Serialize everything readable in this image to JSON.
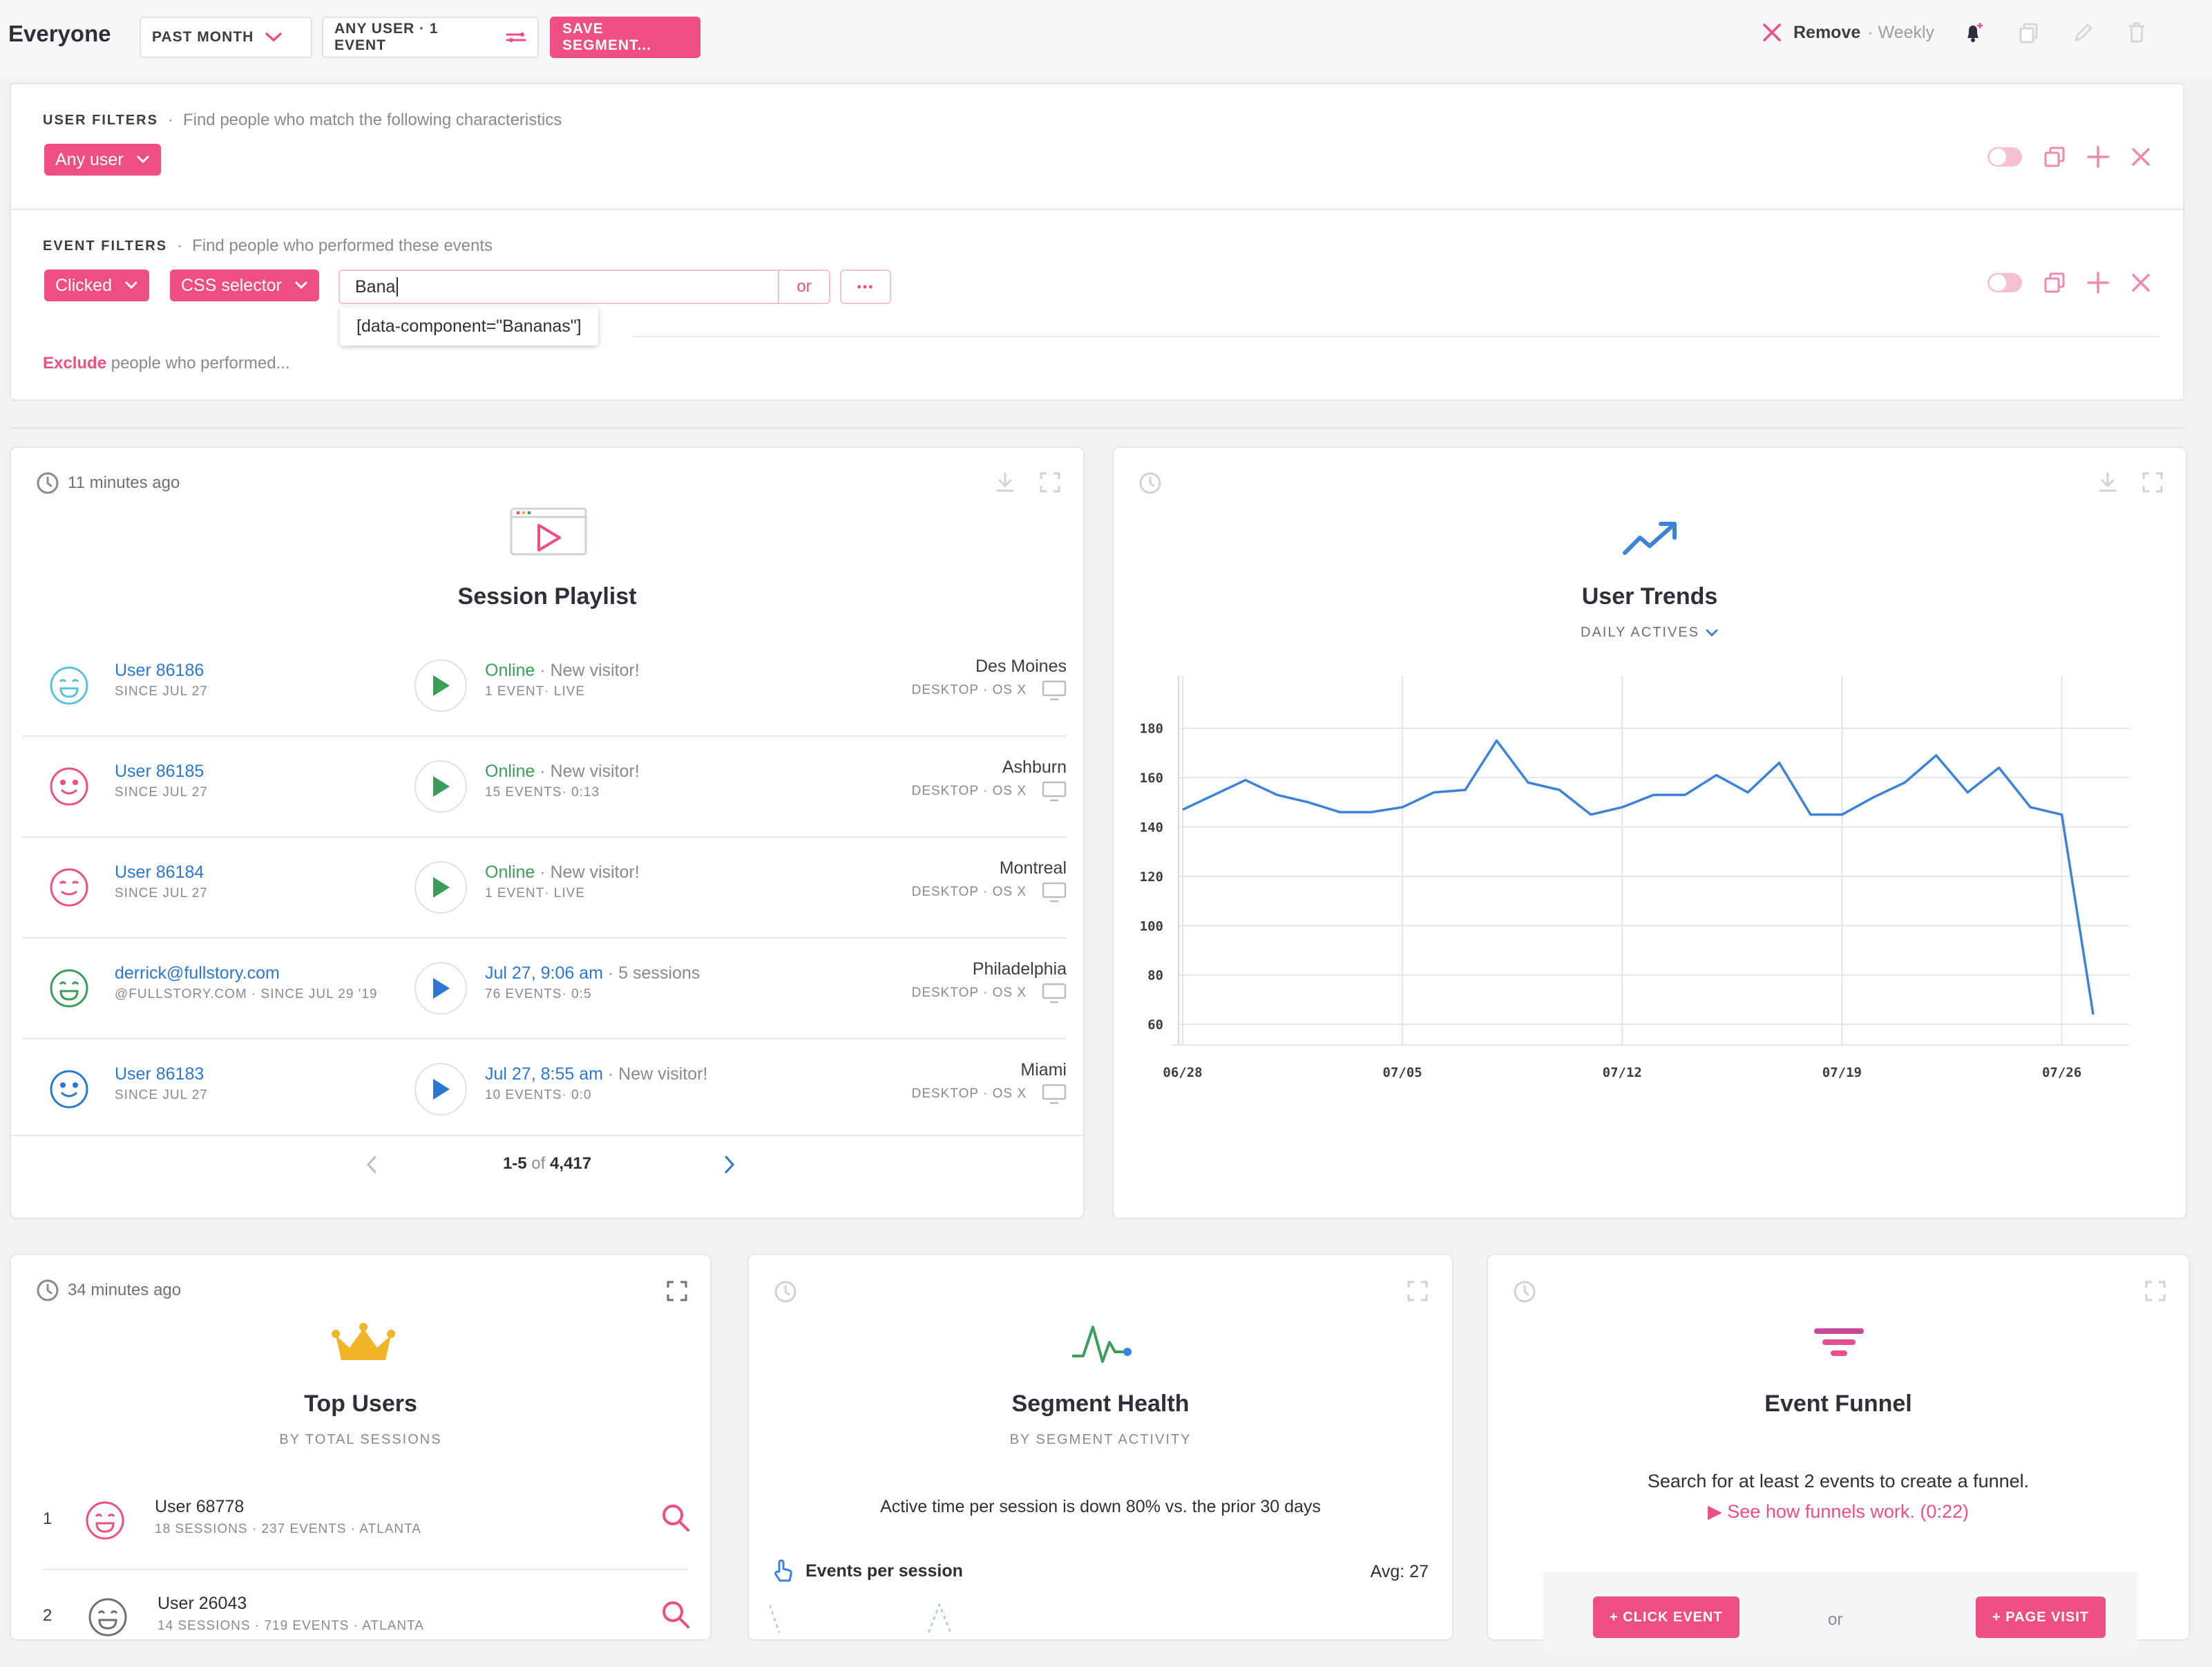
{
  "topbar": {
    "segment_name": "Everyone",
    "time_range": "PAST MONTH",
    "filter_summary": "ANY USER · 1 EVENT",
    "save_button": "SAVE SEGMENT...",
    "remove_label": "Remove",
    "frequency": "· Weekly"
  },
  "filters": {
    "user_filters_label": "USER FILTERS",
    "user_filters_desc": "Find people who match the following characteristics",
    "user_select": "Any user",
    "event_filters_label": "EVENT FILTERS",
    "event_filters_desc": "Find people who performed these events",
    "event_select": "Clicked",
    "target_select": "CSS selector",
    "selector_input": "Bana",
    "or_label": "or",
    "more_label": "•••",
    "suggestion": "[data-component=\"Bananas\"]",
    "exclude_link": "Exclude",
    "exclude_rest": "people who performed..."
  },
  "playlist": {
    "timestamp": "11 minutes ago",
    "title": "Session Playlist",
    "rows": [
      {
        "name": "User 86186",
        "sub": "SINCE JUL 27",
        "status": "Online",
        "note": "New visitor!",
        "detail": "1 EVENT· LIVE",
        "city": "Des Moines",
        "device": "DESKTOP · OS X"
      },
      {
        "name": "User 86185",
        "sub": "SINCE JUL 27",
        "status": "Online",
        "note": "New visitor!",
        "detail": "15 EVENTS· 0:13",
        "city": "Ashburn",
        "device": "DESKTOP · OS X"
      },
      {
        "name": "User 86184",
        "sub": "SINCE JUL 27",
        "status": "Online",
        "note": "New visitor!",
        "detail": "1 EVENT· LIVE",
        "city": "Montreal",
        "device": "DESKTOP · OS X"
      },
      {
        "name": "derrick@fullstory.com",
        "sub": "@FULLSTORY.COM · SINCE JUL 29 '19",
        "status": "Jul 27, 9:06 am",
        "note": "5 sessions",
        "detail": "76 EVENTS· 0:5",
        "city": "Philadelphia",
        "device": "DESKTOP · OS X"
      },
      {
        "name": "User 86183",
        "sub": "SINCE JUL 27",
        "status": "Jul 27, 8:55 am",
        "note": "New visitor!",
        "detail": "10 EVENTS· 0:0",
        "city": "Miami",
        "device": "DESKTOP · OS X"
      }
    ],
    "pager_range": "1-5",
    "pager_of": "of",
    "pager_total": "4,417"
  },
  "trends": {
    "title": "User Trends",
    "metric": "DAILY ACTIVES"
  },
  "chart_data": {
    "type": "line",
    "title": "User Trends",
    "xlabel": "",
    "ylabel": "",
    "x": [
      "06/28",
      "06/29",
      "06/30",
      "07/01",
      "07/02",
      "07/03",
      "07/04",
      "07/05",
      "07/06",
      "07/07",
      "07/08",
      "07/09",
      "07/10",
      "07/11",
      "07/12",
      "07/13",
      "07/14",
      "07/15",
      "07/16",
      "07/17",
      "07/18",
      "07/19",
      "07/20",
      "07/21",
      "07/22",
      "07/23",
      "07/24",
      "07/25",
      "07/26",
      "07/27"
    ],
    "series": [
      {
        "name": "",
        "values": [
          147,
          153,
          159,
          153,
          150,
          146,
          146,
          148,
          154,
          155,
          175,
          158,
          155,
          145,
          148,
          153,
          153,
          161,
          154,
          166,
          145,
          145,
          152,
          158,
          169,
          154,
          164,
          148,
          145,
          64
        ]
      }
    ],
    "ylim": [
      55,
      190
    ],
    "yticks": [
      60,
      80,
      100,
      120,
      140,
      160,
      180
    ],
    "xticks": [
      "06/28",
      "07/05",
      "07/12",
      "07/19",
      "07/26"
    ],
    "grid": true,
    "color": "#3b82d9"
  },
  "topusers": {
    "timestamp": "34 minutes ago",
    "title": "Top Users",
    "subtitle": "BY TOTAL SESSIONS",
    "rows": [
      {
        "rank": "1",
        "name": "User 68778",
        "sub": "18 SESSIONS · 237 EVENTS · ATLANTA"
      },
      {
        "rank": "2",
        "name": "User 26043",
        "sub": "14 SESSIONS · 719 EVENTS · ATLANTA"
      }
    ]
  },
  "health": {
    "title": "Segment Health",
    "subtitle": "BY SEGMENT ACTIVITY",
    "message": "Active time per session is down 80% vs. the prior 30 days",
    "metric": "Events per session",
    "avg": "Avg: 27"
  },
  "funnel": {
    "title": "Event Funnel",
    "message": "Search for at least 2 events to create a funnel.",
    "link": "▶ See how funnels work. (0:22)",
    "click_event": "+ CLICK EVENT",
    "or_label": "or",
    "page_visit": "+ PAGE VISIT"
  },
  "colors": {
    "accent": "#ee4e82",
    "link": "#2a78d3",
    "online": "#3a9d5a",
    "chart": "#3b82d9",
    "crown": "#f2b427"
  }
}
